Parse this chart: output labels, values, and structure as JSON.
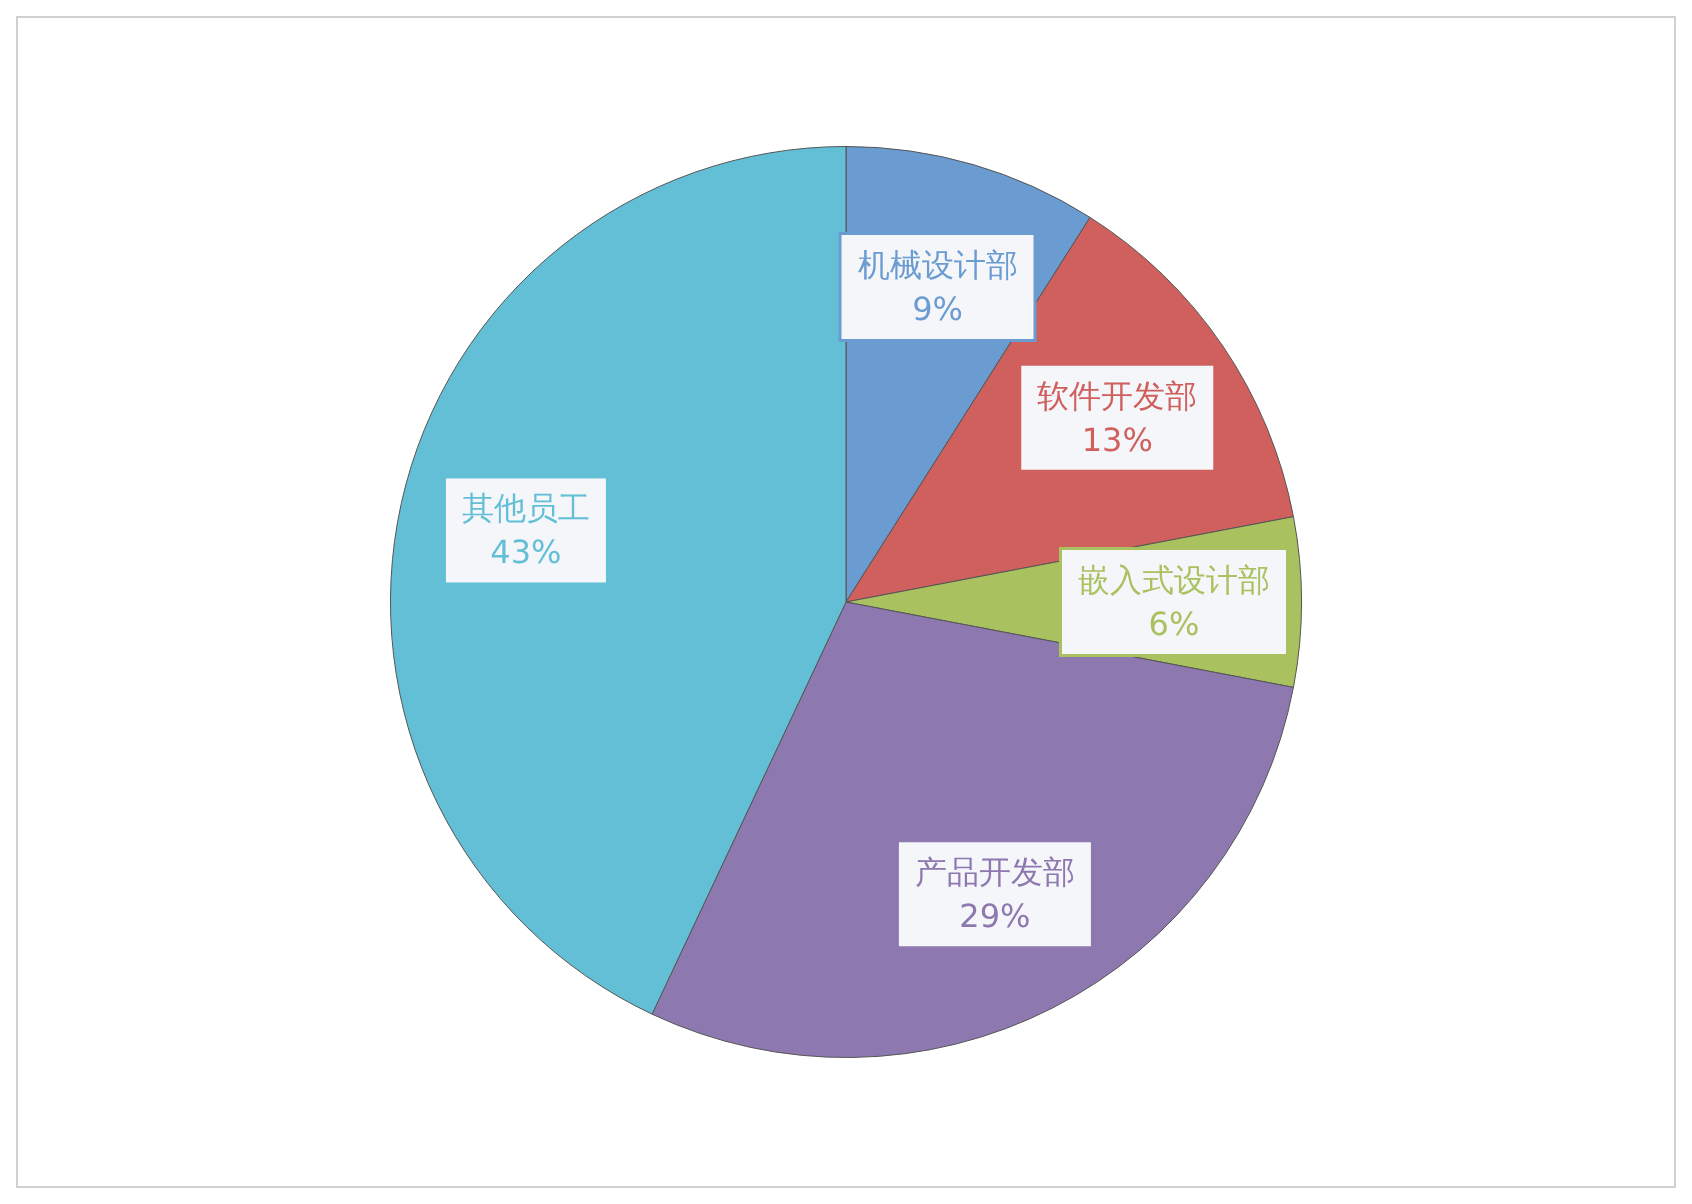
{
  "chart_data": {
    "type": "pie",
    "categories": [
      "机械设计部",
      "软件开发部",
      "嵌入式设计部",
      "产品开发部",
      "其他员工"
    ],
    "values": [
      9,
      13,
      6,
      29,
      43
    ],
    "colors": [
      "#6a9bd1",
      "#d0605e",
      "#a9c15f",
      "#8e78b0",
      "#62bfd6"
    ],
    "value_labels": [
      "9%",
      "13%",
      "6%",
      "29%",
      "43%"
    ],
    "legend": false
  }
}
